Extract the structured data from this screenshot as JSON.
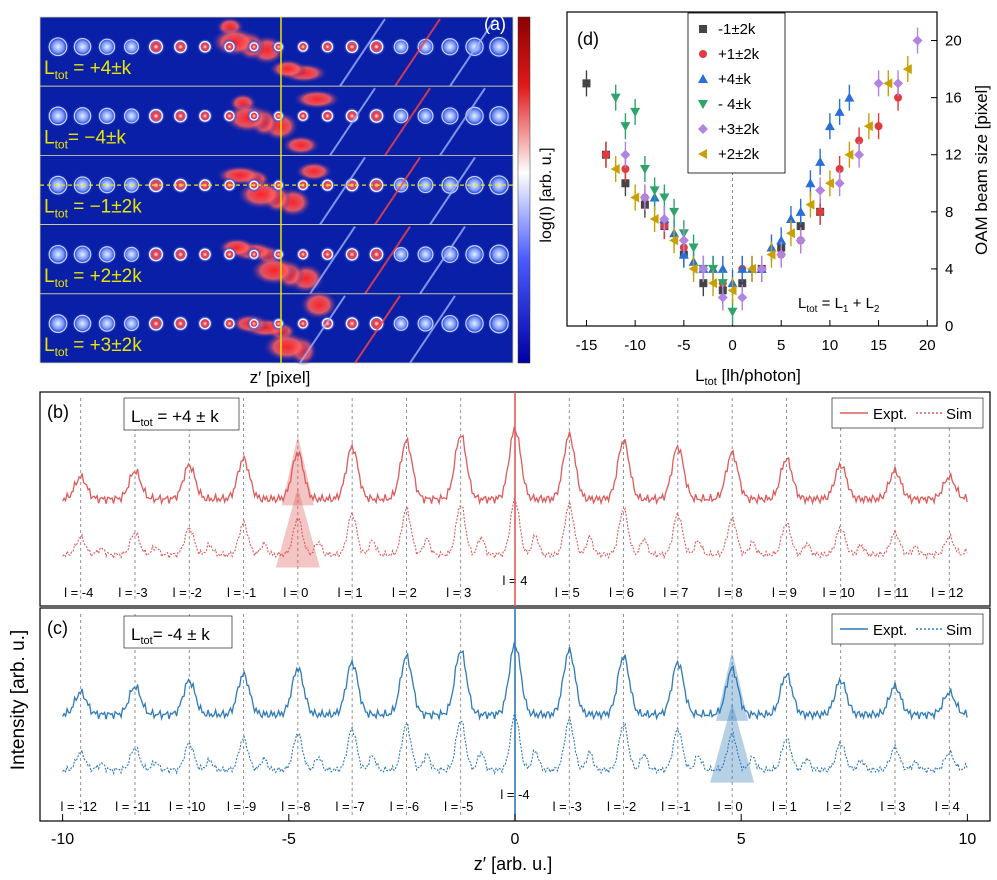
{
  "panel_a": {
    "tag": "(a)",
    "rows": [
      {
        "label_main": "L",
        "label_sub": "tot",
        "label_rest": " = +4±k"
      },
      {
        "label_main": "L",
        "label_sub": "tot",
        "label_rest": "= −4±k"
      },
      {
        "label_main": "L",
        "label_sub": "tot",
        "label_rest": " = −1±2k"
      },
      {
        "label_main": "L",
        "label_sub": "tot",
        "label_rest": " = +2±2k"
      },
      {
        "label_main": "L",
        "label_sub": "tot",
        "label_rest": " = +3±2k"
      }
    ],
    "xlabel": "z′ [pixel]",
    "colorbar_label": "log(I) [arb. u.]",
    "colors": {
      "background": "#0a1fa8",
      "hot": "#d01010",
      "guide": "#e8e600"
    }
  },
  "chart_data": [
    {
      "panel": "(d)",
      "type": "scatter",
      "xlabel_main": "L",
      "xlabel_sub": "tot",
      "xlabel_rest": " [lh/photon]",
      "ylabel": "OAM beam size [pixel]",
      "xlim": [
        -17,
        21
      ],
      "ylim": [
        0,
        22
      ],
      "xticks": [
        -15,
        -10,
        -5,
        0,
        5,
        10,
        15,
        20
      ],
      "yticks": [
        0,
        4,
        8,
        12,
        16,
        20
      ],
      "annotation_main": "L",
      "annotation_sub": "tot",
      "annotation_rest": " = L",
      "annotation_sub1": "1",
      "annotation_plus": " + L",
      "annotation_sub2": "2",
      "legend_position": "top-left",
      "series": [
        {
          "name": "-1±2k",
          "color": "#444444",
          "marker": "square",
          "x": [
            -15,
            -13,
            -11,
            -9,
            -7,
            -5,
            -3,
            -1,
            1,
            3,
            5,
            7,
            9
          ],
          "y": [
            17,
            12,
            10,
            8.5,
            7,
            5,
            3,
            2.5,
            3,
            4,
            5.5,
            7,
            8
          ]
        },
        {
          "name": "+1±2k",
          "color": "#e03c3c",
          "marker": "circle",
          "x": [
            -13,
            -11,
            -9,
            -7,
            -5,
            -3,
            -1,
            1,
            3,
            5,
            7,
            9,
            11,
            13,
            15,
            17
          ],
          "y": [
            12,
            11,
            9,
            7,
            5.5,
            4,
            3,
            4,
            4,
            5,
            6,
            8,
            11,
            13,
            14,
            16
          ]
        },
        {
          "name": "+4±k",
          "color": "#2a6ed8",
          "marker": "triangle-up",
          "x": [
            -8,
            -7,
            -6,
            -5,
            -4,
            -3,
            -2,
            -1,
            0,
            1,
            2,
            3,
            4,
            5,
            6,
            7,
            8,
            9,
            10,
            11,
            12
          ],
          "y": [
            9,
            7.5,
            6.5,
            5,
            4.5,
            4,
            4,
            4,
            3,
            4,
            4,
            4,
            5.5,
            6,
            7.5,
            8,
            10,
            11.5,
            14,
            15,
            16
          ]
        },
        {
          "name": "- 4±k",
          "color": "#2ea36a",
          "marker": "triangle-down",
          "x": [
            -12,
            -11,
            -10,
            -9,
            -8,
            -7,
            -6,
            -5,
            -4,
            -3,
            -2,
            -1,
            0
          ],
          "y": [
            16,
            14,
            15,
            11,
            9.5,
            9,
            8,
            6.5,
            5.5,
            4,
            4,
            3,
            1
          ]
        },
        {
          "name": "+3±2k",
          "color": "#b084e0",
          "marker": "diamond",
          "x": [
            -11,
            -9,
            -7,
            -5,
            -3,
            -1,
            1,
            3,
            5,
            7,
            9,
            11,
            13,
            15,
            17,
            19
          ],
          "y": [
            12,
            9,
            7.5,
            6,
            4,
            2,
            2,
            4,
            5,
            6,
            9.5,
            10,
            12,
            17,
            17,
            20
          ]
        },
        {
          "name": "+2±2k",
          "color": "#c8a000",
          "marker": "triangle-left",
          "x": [
            -12,
            -10,
            -8,
            -6,
            -4,
            -2,
            0,
            2,
            4,
            6,
            8,
            10,
            12,
            14,
            16,
            18
          ],
          "y": [
            11,
            9,
            7.5,
            6,
            4,
            3,
            2.5,
            4,
            5,
            6.5,
            8.5,
            10,
            12,
            14,
            17,
            18
          ]
        }
      ]
    },
    {
      "panel": "(b)",
      "type": "line",
      "title_main": "L",
      "title_sub": "tot",
      "title_rest": " = +4 ± k",
      "legend": [
        "Expt.",
        "Sim"
      ],
      "legend_position": "top-right",
      "color": "#e05a5a",
      "orders": [
        "l = -4",
        "l = -3",
        "l = -2",
        "l = -1",
        "l = 0",
        "l = 1",
        "l = 2",
        "l = 3",
        "l = 4",
        "l = 5",
        "l = 6",
        "l = 7",
        "l = 8",
        "l = 9",
        "l = 10",
        "l = 11",
        "l = 12"
      ],
      "order_positions": [
        -9.6,
        -8.4,
        -7.2,
        -6.0,
        -4.8,
        -3.6,
        -2.4,
        -1.2,
        0,
        1.2,
        2.4,
        3.6,
        4.8,
        6.0,
        7.2,
        8.4,
        9.6
      ],
      "highlight": -4.8,
      "xlim": [
        -10.5,
        10.5
      ]
    },
    {
      "panel": "(c)",
      "type": "line",
      "title_main": "L",
      "title_sub": "tot",
      "title_rest": "= -4 ± k",
      "legend": [
        "Expt.",
        "Sim"
      ],
      "legend_position": "top-right",
      "color": "#2f7ab8",
      "orders": [
        "l = -12",
        "l = -11",
        "l = -10",
        "l = -9",
        "l = -8",
        "l = -7",
        "l = -6",
        "l = -5",
        "l = -4",
        "l = -3",
        "l = -2",
        "l = -1",
        "l = 0",
        "l = 1",
        "l = 2",
        "l = 3",
        "l = 4"
      ],
      "order_positions": [
        -9.6,
        -8.4,
        -7.2,
        -6.0,
        -4.8,
        -3.6,
        -2.4,
        -1.2,
        0,
        1.2,
        2.4,
        3.6,
        4.8,
        6.0,
        7.2,
        8.4,
        9.6
      ],
      "highlight": 4.8,
      "xlim": [
        -10.5,
        10.5
      ],
      "xticks": [
        -10,
        -5,
        0,
        5,
        10
      ],
      "xlabel": "z′ [arb. u.]"
    }
  ],
  "shared_ylabel": "Intensity [arb. u.]"
}
